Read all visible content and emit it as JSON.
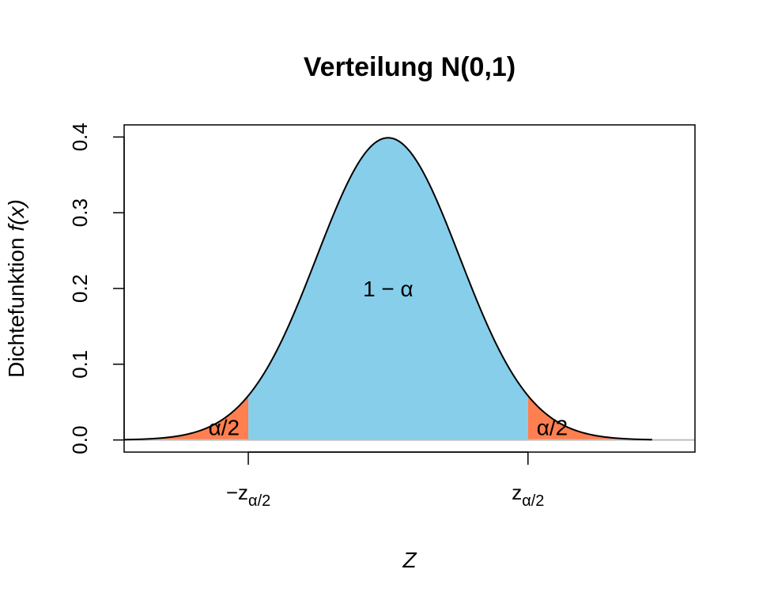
{
  "chart_data": {
    "type": "area",
    "title": "Verteilung N(0,1)",
    "xlabel": "Z",
    "ylabel_prefix": "Dichtefunktion ",
    "ylabel_func": "f(x)",
    "xlim": [
      -3.7,
      4.3
    ],
    "ylim": [
      -0.016,
      0.416
    ],
    "x_range": [
      -3.7,
      3.7
    ],
    "z_crit": 1.96,
    "y_ticks": [
      0.0,
      0.1,
      0.2,
      0.3,
      0.4
    ],
    "y_tick_labels": [
      "0.0",
      "0.1",
      "0.2",
      "0.3",
      "0.4"
    ],
    "x_tick_values": [
      -1.96,
      1.96
    ],
    "x_tick_labels": [
      {
        "main": "−z",
        "sub": "α/2"
      },
      {
        "main": "z",
        "sub": "α/2"
      }
    ],
    "regions": [
      {
        "name": "lower-tail",
        "from": -3.7,
        "to": -1.96,
        "color": "#FF7F50"
      },
      {
        "name": "center",
        "from": -1.96,
        "to": 1.96,
        "color": "#87CEEB"
      },
      {
        "name": "upper-tail",
        "from": 1.96,
        "to": 3.7,
        "color": "#FF7F50"
      }
    ],
    "annotations": [
      {
        "name": "center-label",
        "text": "1 − α",
        "x": 0.0,
        "y": 0.2
      },
      {
        "name": "lower-tail-label",
        "text": "α/2",
        "x": -2.3,
        "y": 0.017
      },
      {
        "name": "upper-tail-label",
        "text": "α/2",
        "x": 2.3,
        "y": 0.017
      }
    ],
    "baseline_color": "#BEBEBE",
    "curve_color": "#000000",
    "grid": false,
    "legend": "none"
  }
}
